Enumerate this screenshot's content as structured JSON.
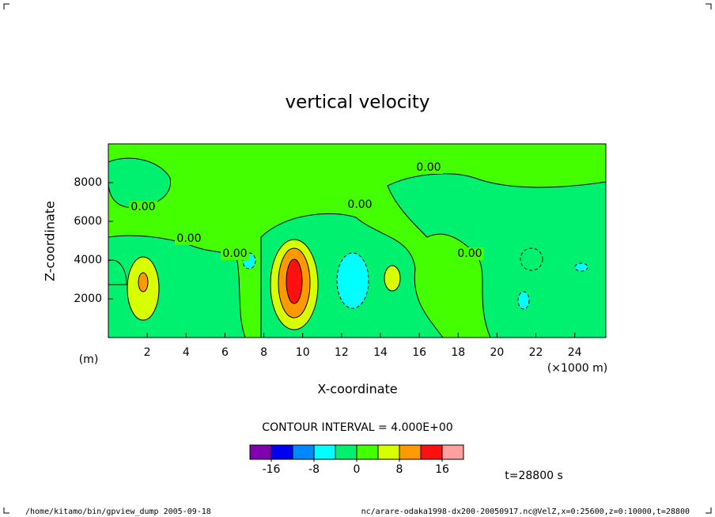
{
  "chart_data": {
    "type": "contour",
    "title": "vertical velocity",
    "x_label": "X-coordinate",
    "y_label": "Z-coordinate",
    "y_unit": "(m)",
    "x_unit": "(×1000 m)",
    "xlim": [
      0,
      25.6
    ],
    "ylim": [
      0,
      10000
    ],
    "xticks": [
      2,
      4,
      6,
      8,
      10,
      12,
      14,
      16,
      18,
      20,
      22,
      24
    ],
    "yticks": [
      2000,
      4000,
      6000,
      8000
    ],
    "contour_labels": [
      "0.00",
      "0.00",
      "0.00",
      "0.00",
      "0.00",
      "0.00"
    ],
    "contour_interval": "CONTOUR INTERVAL = 4.000E+00",
    "colorbar": {
      "levels": [
        -20,
        -16,
        -12,
        -8,
        -4,
        0,
        4,
        8,
        12,
        16,
        20
      ],
      "colors": [
        "#7f00b0",
        "#0000f0",
        "#0088ff",
        "#00ffff",
        "#00f070",
        "#44ff00",
        "#d8ff00",
        "#ff9900",
        "#ff1010",
        "#ffa0a0"
      ],
      "ticks": [
        -16,
        -8,
        0,
        8,
        16
      ]
    },
    "time_label": "t=28800 s",
    "footer_left": "/home/kitamo/bin/gpview_dump  2005-09-18",
    "footer_right": "nc/arare-odaka1998-dx200-20050917.nc@VelZ,x=0:25600,z=0:10000,t=28800"
  }
}
